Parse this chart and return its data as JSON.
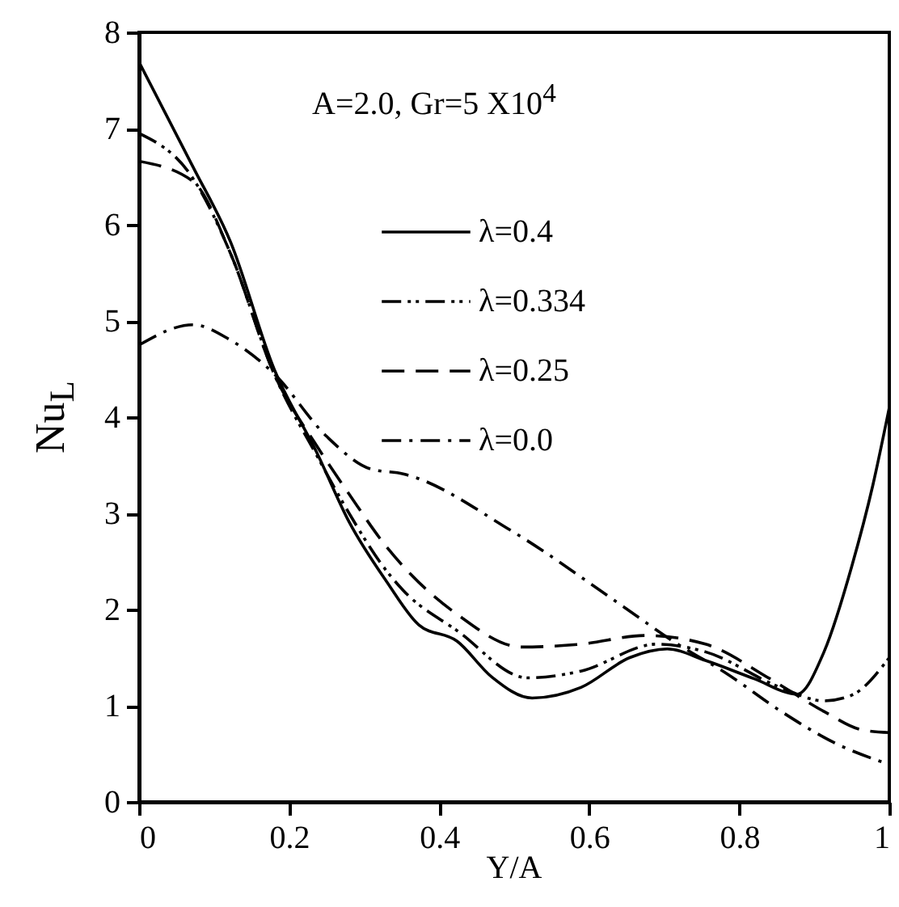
{
  "chart_data": {
    "type": "line",
    "xlabel": "Y/A",
    "ylabel": "Nu$_{L}$",
    "annotations": [
      "A=2.0, Gr=5 X10$^{4}$"
    ],
    "xlim": [
      0,
      1
    ],
    "xticks": [
      0,
      0.2,
      0.4,
      0.6,
      0.8,
      1
    ],
    "ylim": [
      0,
      8
    ],
    "yticks": [
      0,
      1,
      2,
      3,
      4,
      5,
      6,
      7,
      8
    ],
    "grid": false,
    "legend": "top right",
    "marker": "none",
    "series": [
      {
        "name": "λ=0.4",
        "color": "#000000",
        "line_style": "solid",
        "x": [
          0,
          0.072,
          0.122,
          0.18,
          0.237,
          0.28,
          0.33,
          0.373,
          0.424,
          0.47,
          0.524,
          0.589,
          0.654,
          0.704,
          0.755,
          0.82,
          0.877,
          0.913,
          0.95,
          0.978,
          1
        ],
        "values": [
          7.69,
          6.6,
          5.82,
          4.5,
          3.63,
          2.91,
          2.29,
          1.84,
          1.67,
          1.3,
          1.08,
          1.19,
          1.5,
          1.59,
          1.47,
          1.28,
          1.12,
          1.56,
          2.45,
          3.29,
          4.1
        ]
      },
      {
        "name": "λ=0.334",
        "color": "#000000",
        "line_style": "dashdotdot",
        "x": [
          0,
          0.072,
          0.122,
          0.18,
          0.237,
          0.28,
          0.33,
          0.352,
          0.424,
          0.518,
          0.589,
          0.69,
          0.755,
          0.855,
          0.913,
          0.95,
          1
        ],
        "values": [
          6.95,
          6.48,
          5.7,
          4.45,
          3.6,
          3.0,
          2.4,
          2.2,
          1.78,
          1.29,
          1.36,
          1.64,
          1.56,
          1.19,
          1.05,
          1.11,
          1.5
        ]
      },
      {
        "name": "λ=0.25",
        "color": "#000000",
        "line_style": "dashed",
        "x": [
          0,
          0.072,
          0.122,
          0.18,
          0.237,
          0.28,
          0.33,
          0.352,
          0.424,
          0.51,
          0.589,
          0.675,
          0.755,
          0.841,
          0.913,
          0.963,
          1
        ],
        "values": [
          6.66,
          6.45,
          5.7,
          4.45,
          3.7,
          3.2,
          2.65,
          2.45,
          1.95,
          1.61,
          1.64,
          1.73,
          1.64,
          1.28,
          0.94,
          0.75,
          0.72
        ]
      },
      {
        "name": "λ=0.0",
        "color": "#000000",
        "line_style": "dashdot",
        "x": [
          0,
          0.072,
          0.122,
          0.18,
          0.25,
          0.309,
          0.352,
          0.496,
          0.64,
          0.712,
          0.784,
          0.856,
          0.928,
          1
        ],
        "values": [
          4.75,
          4.96,
          4.8,
          4.45,
          3.8,
          3.46,
          3.41,
          2.82,
          2.06,
          1.67,
          1.33,
          0.94,
          0.61,
          0.39
        ]
      }
    ]
  }
}
